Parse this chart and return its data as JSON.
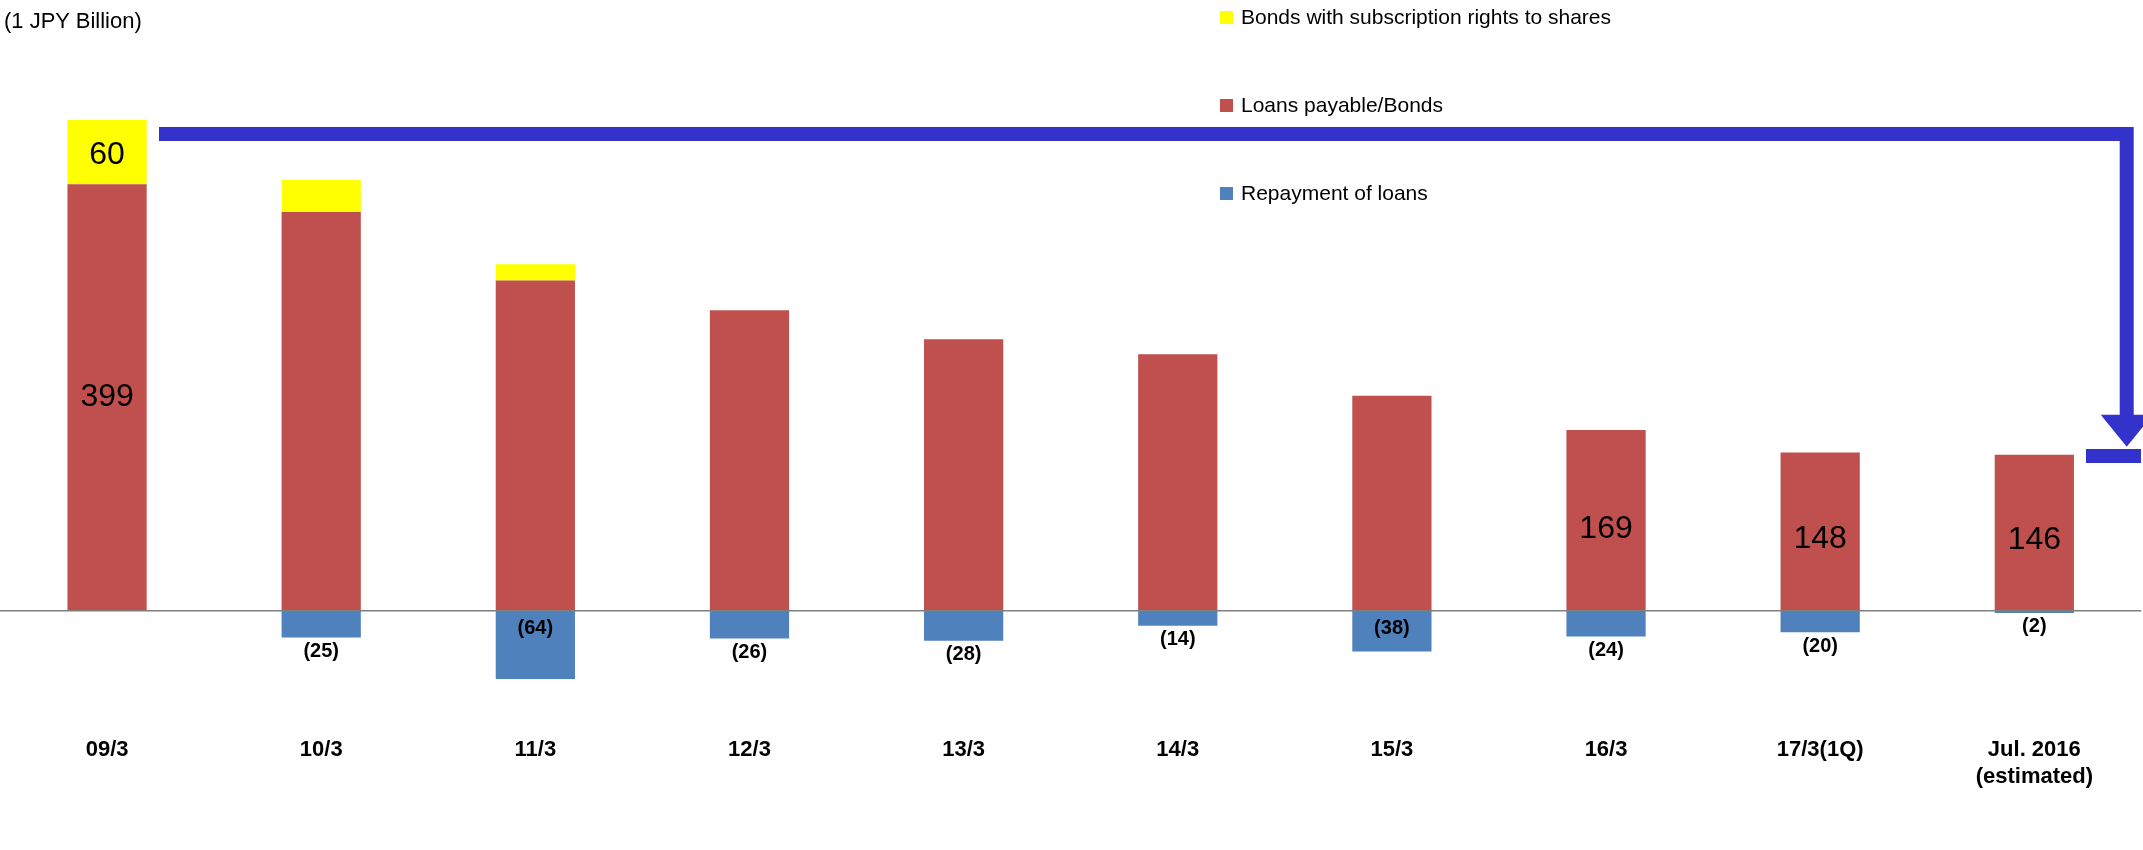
{
  "chart_data": {
    "type": "bar",
    "stacked": true,
    "annotations": [
      "(1 JPY Billion)"
    ],
    "legend": "top right",
    "categories": [
      "09/3",
      "10/3",
      "11/3",
      "12/3",
      "13/3",
      "14/3",
      "15/3",
      "16/3",
      "17/3(1Q)",
      "Jul. 2016\n(estimated)"
    ],
    "series": [
      {
        "name": "Loans payable/Bonds",
        "color": "#c0504d",
        "values": [
          399,
          373,
          309,
          281,
          254,
          240,
          201,
          169,
          148,
          146
        ],
        "value_labels": [
          "399",
          null,
          null,
          null,
          null,
          null,
          null,
          "169",
          "148",
          "146"
        ]
      },
      {
        "name": "Bonds with subscription rights to shares",
        "color": "#ffff00",
        "values": [
          60,
          30,
          15,
          null,
          null,
          null,
          null,
          null,
          null,
          null
        ],
        "value_labels": [
          "60",
          null,
          null,
          null,
          null,
          null,
          null,
          null,
          null,
          null
        ]
      },
      {
        "name": "Repayment of loans",
        "color": "#4f81bd",
        "values": [
          null,
          -25,
          -64,
          -26,
          -28,
          -14,
          -38,
          -24,
          -20,
          -2
        ],
        "value_labels": [
          null,
          "(25)",
          "(64)",
          "(26)",
          "(28)",
          "(14)",
          "(38)",
          "(24)",
          "(20)",
          "(2)"
        ]
      }
    ]
  }
}
